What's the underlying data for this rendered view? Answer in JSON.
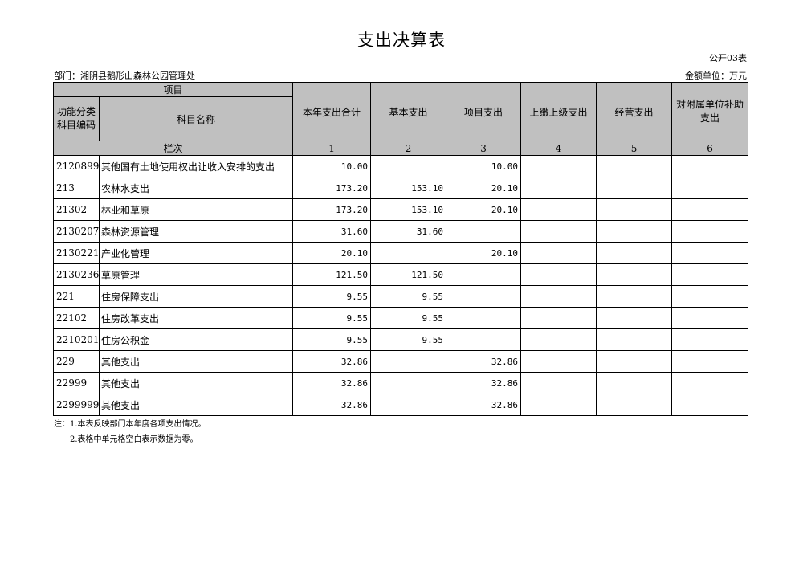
{
  "title": "支出决算表",
  "form_no": "公开03表",
  "department": "部门：湘阴县鹅形山森林公园管理处",
  "unit": "金额单位：万元",
  "header": {
    "item": "项目",
    "code": "功能分类科目编码",
    "name": "科目名称",
    "columns": [
      "本年支出合计",
      "基本支出",
      "项目支出",
      "上缴上级支出",
      "经营支出",
      "对附属单位补助支出"
    ],
    "index_label": "栏次",
    "index": [
      "1",
      "2",
      "3",
      "4",
      "5",
      "6"
    ]
  },
  "rows": [
    {
      "code": "2120899",
      "name": "其他国有土地使用权出让收入安排的支出",
      "values": [
        "10.00",
        "",
        "10.00",
        "",
        "",
        ""
      ]
    },
    {
      "code": "213",
      "name": "农林水支出",
      "values": [
        "173.20",
        "153.10",
        "20.10",
        "",
        "",
        ""
      ]
    },
    {
      "code": "21302",
      "name": "林业和草原",
      "values": [
        "173.20",
        "153.10",
        "20.10",
        "",
        "",
        ""
      ]
    },
    {
      "code": "2130207",
      "name": "森林资源管理",
      "values": [
        "31.60",
        "31.60",
        "",
        "",
        "",
        ""
      ]
    },
    {
      "code": "2130221",
      "name": "产业化管理",
      "values": [
        "20.10",
        "",
        "20.10",
        "",
        "",
        ""
      ]
    },
    {
      "code": "2130236",
      "name": "草原管理",
      "values": [
        "121.50",
        "121.50",
        "",
        "",
        "",
        ""
      ]
    },
    {
      "code": "221",
      "name": "住房保障支出",
      "values": [
        "9.55",
        "9.55",
        "",
        "",
        "",
        ""
      ]
    },
    {
      "code": "22102",
      "name": "住房改革支出",
      "values": [
        "9.55",
        "9.55",
        "",
        "",
        "",
        ""
      ]
    },
    {
      "code": "2210201",
      "name": "住房公积金",
      "values": [
        "9.55",
        "9.55",
        "",
        "",
        "",
        ""
      ]
    },
    {
      "code": "229",
      "name": "其他支出",
      "values": [
        "32.86",
        "",
        "32.86",
        "",
        "",
        ""
      ]
    },
    {
      "code": "22999",
      "name": "其他支出",
      "values": [
        "32.86",
        "",
        "32.86",
        "",
        "",
        ""
      ]
    },
    {
      "code": "2299999",
      "name": "其他支出",
      "values": [
        "32.86",
        "",
        "32.86",
        "",
        "",
        ""
      ]
    }
  ],
  "notes": [
    "注：1.本表反映部门本年度各项支出情况。",
    "2.表格中单元格空白表示数据为零。"
  ]
}
